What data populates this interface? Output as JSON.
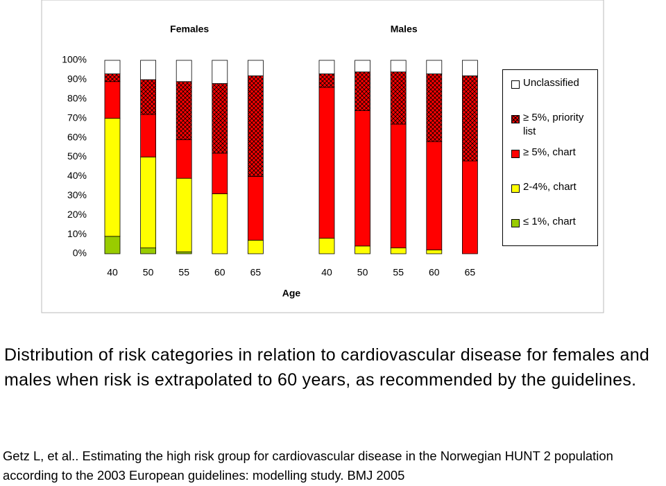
{
  "chart_data": {
    "type": "bar",
    "stacked": true,
    "groups": [
      "Females",
      "Males"
    ],
    "x_label": "Age",
    "categories": [
      "40",
      "50",
      "55",
      "60",
      "65",
      "40",
      "50",
      "55",
      "60",
      "65"
    ],
    "series": [
      {
        "name": "≤ 1%, chart",
        "color": "#99cc00",
        "values": [
          9,
          3,
          1,
          0,
          0,
          0,
          0,
          0,
          0,
          0
        ]
      },
      {
        "name": "2-4%, chart",
        "color": "#ffff00",
        "values": [
          61,
          47,
          38,
          31,
          7,
          8,
          4,
          3,
          2,
          0
        ]
      },
      {
        "name": "≥ 5%, chart",
        "color": "#ff0000",
        "values": [
          19,
          22,
          20,
          21,
          33,
          78,
          70,
          64,
          56,
          48
        ]
      },
      {
        "name": "≥ 5%, priority list",
        "color": "#ff0000",
        "pattern": "crosshatch",
        "values": [
          4,
          18,
          30,
          36,
          52,
          7,
          20,
          27,
          35,
          44
        ]
      },
      {
        "name": "Unclassified",
        "color": "#ffffff",
        "values": [
          7,
          10,
          11,
          12,
          8,
          7,
          6,
          6,
          7,
          8
        ]
      }
    ],
    "ylim": [
      0,
      100
    ],
    "yticks": [
      {
        "value": 0,
        "label": "0%"
      },
      {
        "value": 10,
        "label": "10%"
      },
      {
        "value": 20,
        "label": "20%"
      },
      {
        "value": 30,
        "label": "30%"
      },
      {
        "value": 40,
        "label": "40%"
      },
      {
        "value": 50,
        "label": "50%"
      },
      {
        "value": 60,
        "label": "60%"
      },
      {
        "value": 70,
        "label": "70%"
      },
      {
        "value": 80,
        "label": "80%"
      },
      {
        "value": 90,
        "label": "90%"
      },
      {
        "value": 100,
        "label": "100%"
      }
    ],
    "legend": "right"
  },
  "caption": "Distribution of risk categories in relation to cardiovascular disease for females and males when risk is extrapolated to 60 years, as recommended by the guidelines.",
  "citation": "Getz L, et al.. Estimating the high risk group for cardiovascular disease in the Norwegian HUNT 2 population according to the 2003 European guidelines: modelling study. BMJ 2005"
}
